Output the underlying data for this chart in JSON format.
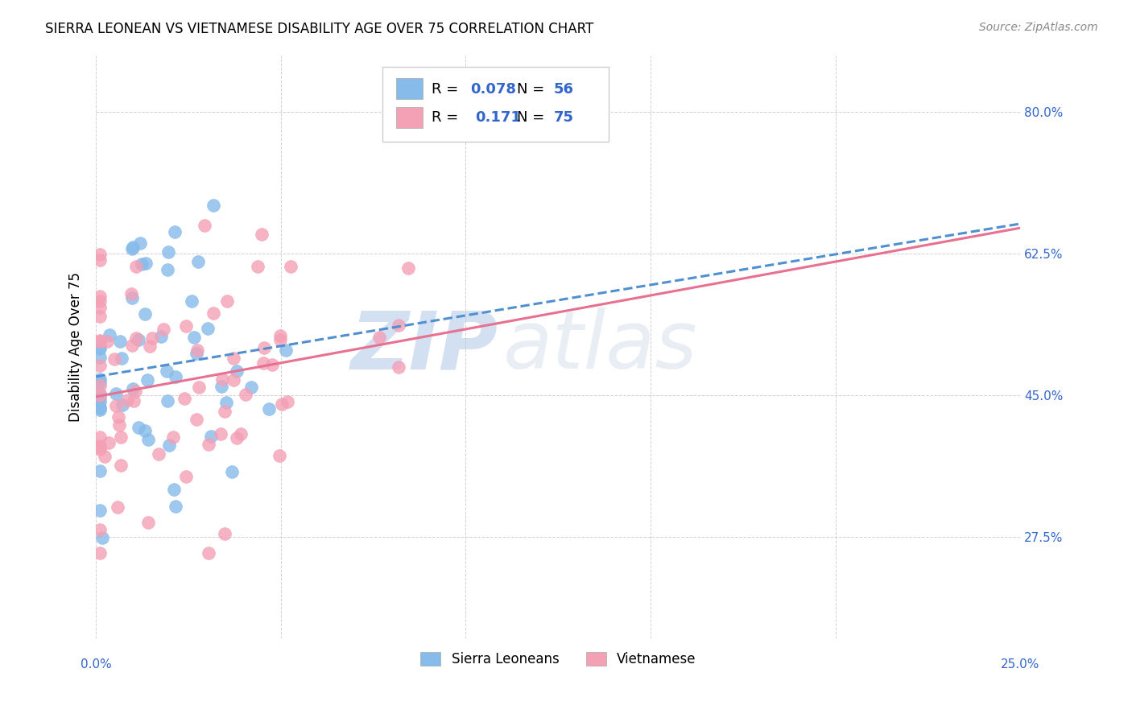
{
  "title": "SIERRA LEONEAN VS VIETNAMESE DISABILITY AGE OVER 75 CORRELATION CHART",
  "source": "Source: ZipAtlas.com",
  "ylabel": "Disability Age Over 75",
  "xmin": 0.0,
  "xmax": 0.25,
  "ymin": 0.15,
  "ymax": 0.87,
  "sierra_color": "#87BBEA",
  "viet_color": "#F4A0B5",
  "sierra_trendline_color": "#5090D0",
  "viet_trendline_color": "#E87090",
  "watermark_zip": "ZIP",
  "watermark_atlas": "atlas",
  "ytick_values": [
    0.275,
    0.45,
    0.625,
    0.8
  ],
  "ytick_labels": [
    "27.5%",
    "45.0%",
    "62.5%",
    "80.0%"
  ],
  "xtick_values": [
    0.0,
    0.05,
    0.1,
    0.15,
    0.2,
    0.25
  ],
  "label_color": "#3366cc",
  "grid_color": "#cccccc"
}
